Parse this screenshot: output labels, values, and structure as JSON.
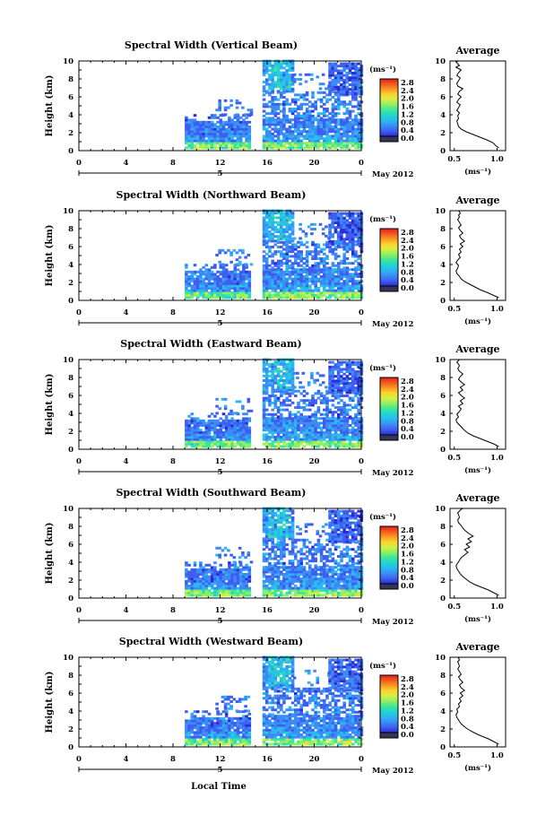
{
  "chart_data": [
    {
      "type": "heatmap",
      "title": "Spectral Width (Vertical Beam)",
      "ylabel": "Height (km)",
      "ylim": [
        0,
        10
      ],
      "xlim": [
        0,
        24
      ],
      "x_ticks": [
        "0",
        "4",
        "8",
        "12",
        "16",
        "20",
        "0"
      ],
      "date_ticks": [
        "5"
      ],
      "date_label": "May 2012",
      "colorbar": {
        "unit": "(ms⁻¹)",
        "ticks": [
          "2.8",
          "2.4",
          "2.0",
          "1.6",
          "1.2",
          "0.8",
          "0.4",
          "0.0"
        ]
      },
      "profile": {
        "title": "Average",
        "xlabel": "(ms⁻¹)",
        "x_ticks": [
          "0.5",
          "1.0"
        ],
        "xlim": [
          0.45,
          1.1
        ],
        "ylim": [
          0,
          10
        ],
        "y_ticks": [
          "0",
          "2",
          "4",
          "6",
          "8",
          "10"
        ],
        "x": [
          1.02,
          0.98,
          0.95,
          0.88,
          0.8,
          0.72,
          0.64,
          0.58,
          0.55,
          0.54,
          0.53,
          0.55,
          0.54,
          0.56,
          0.53,
          0.55,
          0.57,
          0.53,
          0.55,
          0.58,
          0.54,
          0.56,
          0.6,
          0.54,
          0.53,
          0.55,
          0.57,
          0.53,
          0.55,
          0.58,
          0.52,
          0.56,
          0.54,
          0.52,
          0.55
        ],
        "y": [
          0.3,
          0.6,
          0.9,
          1.2,
          1.5,
          1.8,
          2.1,
          2.4,
          2.7,
          3.0,
          3.3,
          3.6,
          3.9,
          4.2,
          4.5,
          4.8,
          5.1,
          5.4,
          5.7,
          6.0,
          6.3,
          6.6,
          6.9,
          7.2,
          7.5,
          7.8,
          8.1,
          8.4,
          8.7,
          9.0,
          9.3,
          9.5,
          9.7,
          9.9,
          10.0
        ]
      }
    },
    {
      "type": "heatmap",
      "title": "Spectral Width (Northward Beam)",
      "ylabel": "Height (km)",
      "ylim": [
        0,
        10
      ],
      "xlim": [
        0,
        24
      ],
      "x_ticks": [
        "0",
        "4",
        "8",
        "12",
        "16",
        "20",
        "0"
      ],
      "date_ticks": [
        "5"
      ],
      "date_label": "May 2012",
      "colorbar": {
        "unit": "(ms⁻¹)",
        "ticks": [
          "2.8",
          "2.4",
          "2.0",
          "1.6",
          "1.2",
          "0.8",
          "0.4",
          "0.0"
        ]
      },
      "profile": {
        "title": "Average",
        "xlabel": "(ms⁻¹)",
        "x_ticks": [
          "0.5",
          "1.0"
        ],
        "xlim": [
          0.45,
          1.1
        ],
        "ylim": [
          0,
          10
        ],
        "y_ticks": [
          "0",
          "2",
          "4",
          "6",
          "8",
          "10"
        ],
        "x": [
          1.02,
          0.95,
          0.88,
          0.8,
          0.74,
          0.68,
          0.62,
          0.58,
          0.56,
          0.53,
          0.52,
          0.54,
          0.55,
          0.52,
          0.54,
          0.57,
          0.55,
          0.58,
          0.56,
          0.6,
          0.57,
          0.62,
          0.58,
          0.56,
          0.6,
          0.57,
          0.55,
          0.58,
          0.56,
          0.54,
          0.56,
          0.55,
          0.57,
          0.56,
          0.55
        ],
        "y": [
          0.3,
          0.6,
          0.9,
          1.2,
          1.5,
          1.8,
          2.1,
          2.4,
          2.7,
          3.0,
          3.3,
          3.6,
          3.9,
          4.2,
          4.5,
          4.8,
          5.1,
          5.4,
          5.7,
          6.0,
          6.3,
          6.6,
          6.9,
          7.2,
          7.5,
          7.8,
          8.1,
          8.4,
          8.7,
          9.0,
          9.3,
          9.5,
          9.7,
          9.9,
          10.0
        ]
      }
    },
    {
      "type": "heatmap",
      "title": "Spectral Width (Eastward Beam)",
      "ylabel": "Height (km)",
      "ylim": [
        0,
        10
      ],
      "xlim": [
        0,
        24
      ],
      "x_ticks": [
        "0",
        "4",
        "8",
        "12",
        "16",
        "20",
        "0"
      ],
      "date_ticks": [
        "5"
      ],
      "date_label": "May 2012",
      "colorbar": {
        "unit": "(ms⁻¹)",
        "ticks": [
          "2.8",
          "2.4",
          "2.0",
          "1.6",
          "1.2",
          "0.8",
          "0.4",
          "0.0"
        ]
      },
      "profile": {
        "title": "Average",
        "xlabel": "(ms⁻¹)",
        "x_ticks": [
          "0.5",
          "1.0"
        ],
        "xlim": [
          0.45,
          1.1
        ],
        "ylim": [
          0,
          10
        ],
        "y_ticks": [
          "0",
          "2",
          "4",
          "6",
          "8",
          "10"
        ],
        "x": [
          1.02,
          0.96,
          0.88,
          0.8,
          0.72,
          0.66,
          0.62,
          0.59,
          0.56,
          0.53,
          0.52,
          0.55,
          0.53,
          0.56,
          0.58,
          0.55,
          0.6,
          0.57,
          0.62,
          0.58,
          0.55,
          0.6,
          0.57,
          0.62,
          0.58,
          0.55,
          0.57,
          0.6,
          0.56,
          0.54,
          0.56,
          0.55,
          0.53,
          0.55,
          0.56
        ],
        "y": [
          0.3,
          0.6,
          0.9,
          1.2,
          1.5,
          1.8,
          2.1,
          2.4,
          2.7,
          3.0,
          3.3,
          3.6,
          3.9,
          4.2,
          4.5,
          4.8,
          5.1,
          5.4,
          5.7,
          6.0,
          6.3,
          6.6,
          6.9,
          7.2,
          7.5,
          7.8,
          8.1,
          8.4,
          8.7,
          9.0,
          9.3,
          9.5,
          9.7,
          9.9,
          10.0
        ]
      }
    },
    {
      "type": "heatmap",
      "title": "Spectral Width (Southward Beam)",
      "ylabel": "Height (km)",
      "ylim": [
        0,
        10
      ],
      "xlim": [
        0,
        24
      ],
      "x_ticks": [
        "0",
        "4",
        "8",
        "12",
        "16",
        "20",
        "0"
      ],
      "date_ticks": [
        "5"
      ],
      "date_label": "May 2012",
      "colorbar": {
        "unit": "(ms⁻¹)",
        "ticks": [
          "2.8",
          "2.4",
          "2.0",
          "1.6",
          "1.2",
          "0.8",
          "0.4",
          "0.0"
        ]
      },
      "profile": {
        "title": "Average",
        "xlabel": "(ms⁻¹)",
        "x_ticks": [
          "0.5",
          "1.0"
        ],
        "xlim": [
          0.45,
          1.1
        ],
        "ylim": [
          0,
          10
        ],
        "y_ticks": [
          "0",
          "2",
          "4",
          "6",
          "8",
          "10"
        ],
        "x": [
          1.02,
          0.96,
          0.9,
          0.82,
          0.74,
          0.68,
          0.64,
          0.6,
          0.57,
          0.55,
          0.53,
          0.52,
          0.54,
          0.56,
          0.58,
          0.62,
          0.66,
          0.62,
          0.68,
          0.64,
          0.7,
          0.66,
          0.72,
          0.67,
          0.63,
          0.6,
          0.58,
          0.55,
          0.54,
          0.56,
          0.55,
          0.54,
          0.56,
          0.58,
          0.6
        ],
        "y": [
          0.3,
          0.6,
          0.9,
          1.2,
          1.5,
          1.8,
          2.1,
          2.4,
          2.7,
          3.0,
          3.3,
          3.6,
          3.9,
          4.2,
          4.5,
          4.8,
          5.1,
          5.4,
          5.7,
          6.0,
          6.3,
          6.6,
          6.9,
          7.2,
          7.5,
          7.8,
          8.1,
          8.4,
          8.7,
          9.0,
          9.3,
          9.5,
          9.7,
          9.9,
          10.0
        ]
      }
    },
    {
      "type": "heatmap",
      "title": "Spectral Width (Westward Beam)",
      "ylabel": "Height (km)",
      "ylim": [
        0,
        10
      ],
      "xlim": [
        0,
        24
      ],
      "x_ticks": [
        "0",
        "4",
        "8",
        "12",
        "16",
        "20",
        "0"
      ],
      "date_ticks": [
        "5"
      ],
      "date_label": "May 2012",
      "xlabel": "Local Time",
      "colorbar": {
        "unit": "(ms⁻¹)",
        "ticks": [
          "2.8",
          "2.4",
          "2.0",
          "1.6",
          "1.2",
          "0.8",
          "0.4",
          "0.0"
        ]
      },
      "profile": {
        "title": "Average",
        "xlabel": "(ms⁻¹)",
        "x_ticks": [
          "0.5",
          "1.0"
        ],
        "xlim": [
          0.45,
          1.1
        ],
        "ylim": [
          0,
          10
        ],
        "y_ticks": [
          "0",
          "2",
          "4",
          "6",
          "8",
          "10"
        ],
        "x": [
          1.02,
          0.96,
          0.9,
          0.82,
          0.75,
          0.69,
          0.64,
          0.6,
          0.57,
          0.55,
          0.53,
          0.52,
          0.54,
          0.53,
          0.56,
          0.55,
          0.58,
          0.56,
          0.6,
          0.57,
          0.62,
          0.58,
          0.56,
          0.6,
          0.57,
          0.55,
          0.58,
          0.56,
          0.54,
          0.56,
          0.55,
          0.54,
          0.56,
          0.55,
          0.56
        ],
        "y": [
          0.3,
          0.6,
          0.9,
          1.2,
          1.5,
          1.8,
          2.1,
          2.4,
          2.7,
          3.0,
          3.3,
          3.6,
          3.9,
          4.2,
          4.5,
          4.8,
          5.1,
          5.4,
          5.7,
          6.0,
          6.3,
          6.6,
          6.9,
          7.2,
          7.5,
          7.8,
          8.1,
          8.4,
          8.7,
          9.0,
          9.3,
          9.5,
          9.7,
          9.9,
          10.0
        ]
      }
    }
  ],
  "colors": {
    "colormap": [
      "#0d0887",
      "#2c2bd6",
      "#3f5df0",
      "#3b8cf5",
      "#2ab7f2",
      "#21d4d2",
      "#3ce69a",
      "#8af064",
      "#d2f048",
      "#fbd630",
      "#fb9a23",
      "#f35a1e",
      "#e0201b"
    ],
    "palette_step_color": "#3a46d8",
    "colorbar_base": "#35355a"
  }
}
